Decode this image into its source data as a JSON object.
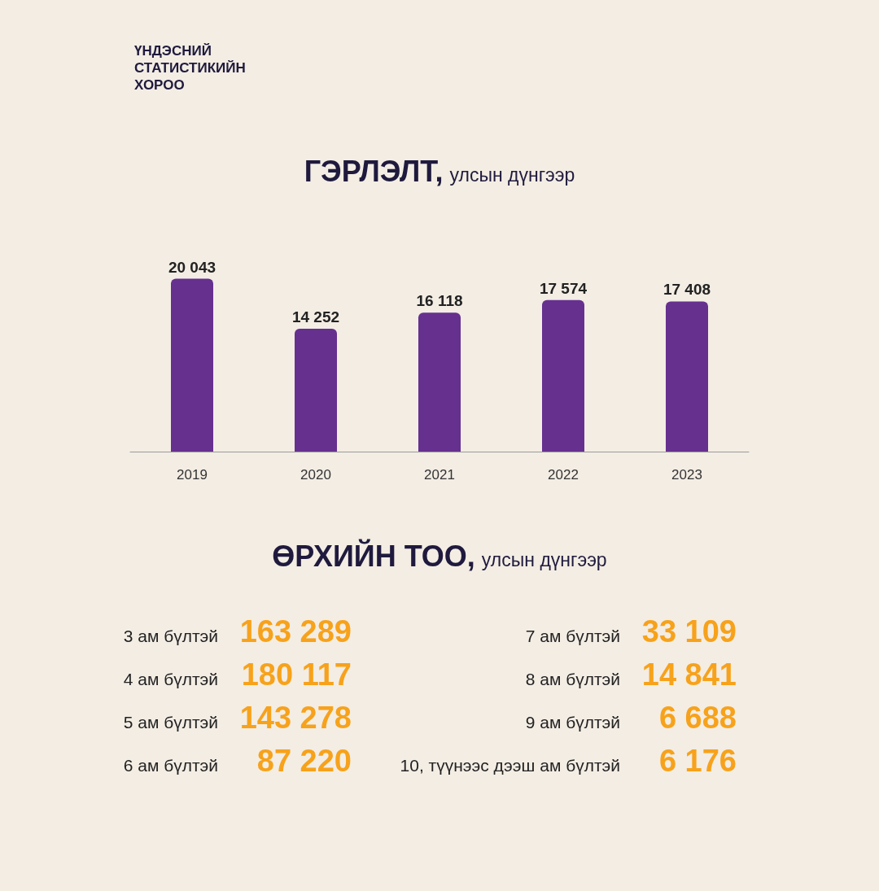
{
  "chart_data": [
    {
      "type": "bar",
      "title": "ГЭРЛЭЛТ,",
      "subtitle": "улсын дүнгээр",
      "categories": [
        "2019",
        "2020",
        "2021",
        "2022",
        "2023"
      ],
      "values": [
        20043,
        14252,
        16118,
        17574,
        17408
      ],
      "color": "#66308f",
      "data_labels": true,
      "annotations": [
        "ҮНДЭСНИЙ СТАТИСТИКИЙН ХОРОО"
      ]
    },
    {
      "type": "other",
      "title": "ӨРХИЙН ТОО,",
      "subtitle": "улсын дүнгээр",
      "annotations": [
        "3 ам бүлтэй",
        "163 289",
        "4 ам бүлтэй",
        "180 117",
        "5 ам бүлтэй",
        "143 278",
        "6 ам бүлтэй",
        "87 220",
        "7 ам бүлтэй",
        "33 109",
        "8 ам бүлтэй",
        "14 841",
        "9 ам бүлтэй",
        "6 688",
        "10, түүнээс дээш ам бүлтэй",
        "6 176"
      ]
    }
  ]
}
